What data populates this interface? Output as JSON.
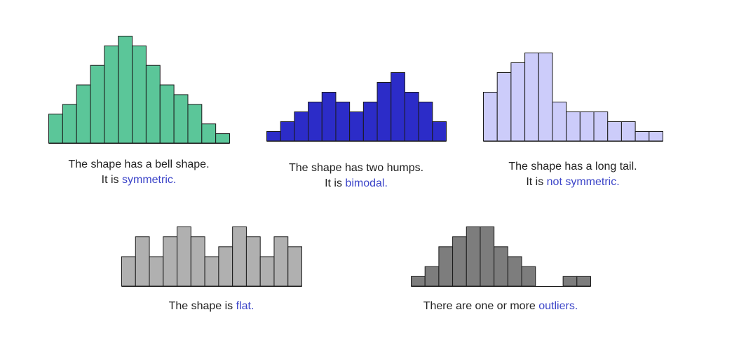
{
  "chart_data": [
    {
      "id": "bell",
      "type": "bar",
      "fill": "#5bc699",
      "values": [
        3,
        4,
        6,
        8,
        10,
        11,
        10,
        8,
        6,
        5,
        4,
        2,
        1
      ],
      "ymax": 11,
      "caption": {
        "line1": "The shape has a bell shape.",
        "prefix": "It is ",
        "highlight": "symmetric."
      }
    },
    {
      "id": "bimodal",
      "type": "bar",
      "fill": "#2c2cc8",
      "values": [
        1,
        2,
        3,
        4,
        5,
        4,
        3,
        4,
        6,
        7,
        5,
        4,
        2
      ],
      "ymax": 7,
      "caption": {
        "line1": "The shape has two humps.",
        "prefix": "It is ",
        "highlight": "bimodal."
      }
    },
    {
      "id": "tail",
      "type": "bar",
      "fill": "#ccccfa",
      "values": [
        5,
        7,
        8,
        9,
        9,
        4,
        3,
        3,
        3,
        2,
        2,
        1,
        1
      ],
      "ymax": 9,
      "caption": {
        "line1": "The shape has a long tail.",
        "prefix": "It is ",
        "highlight": "not symmetric."
      }
    },
    {
      "id": "flat",
      "type": "bar",
      "fill": "#b0b0b0",
      "values": [
        3,
        5,
        3,
        5,
        6,
        5,
        3,
        4,
        6,
        5,
        3,
        5,
        4
      ],
      "ymax": 6,
      "caption": {
        "line1": "",
        "prefix": "The shape is ",
        "highlight": "flat."
      }
    },
    {
      "id": "outlier",
      "type": "bar",
      "fill": "#7d7d7d",
      "values": [
        1,
        2,
        4,
        5,
        6,
        6,
        4,
        3,
        2,
        0,
        0,
        1,
        1
      ],
      "ymax": 6,
      "caption": {
        "line1": "",
        "prefix": "There are one or more ",
        "highlight": "outliers."
      }
    }
  ]
}
